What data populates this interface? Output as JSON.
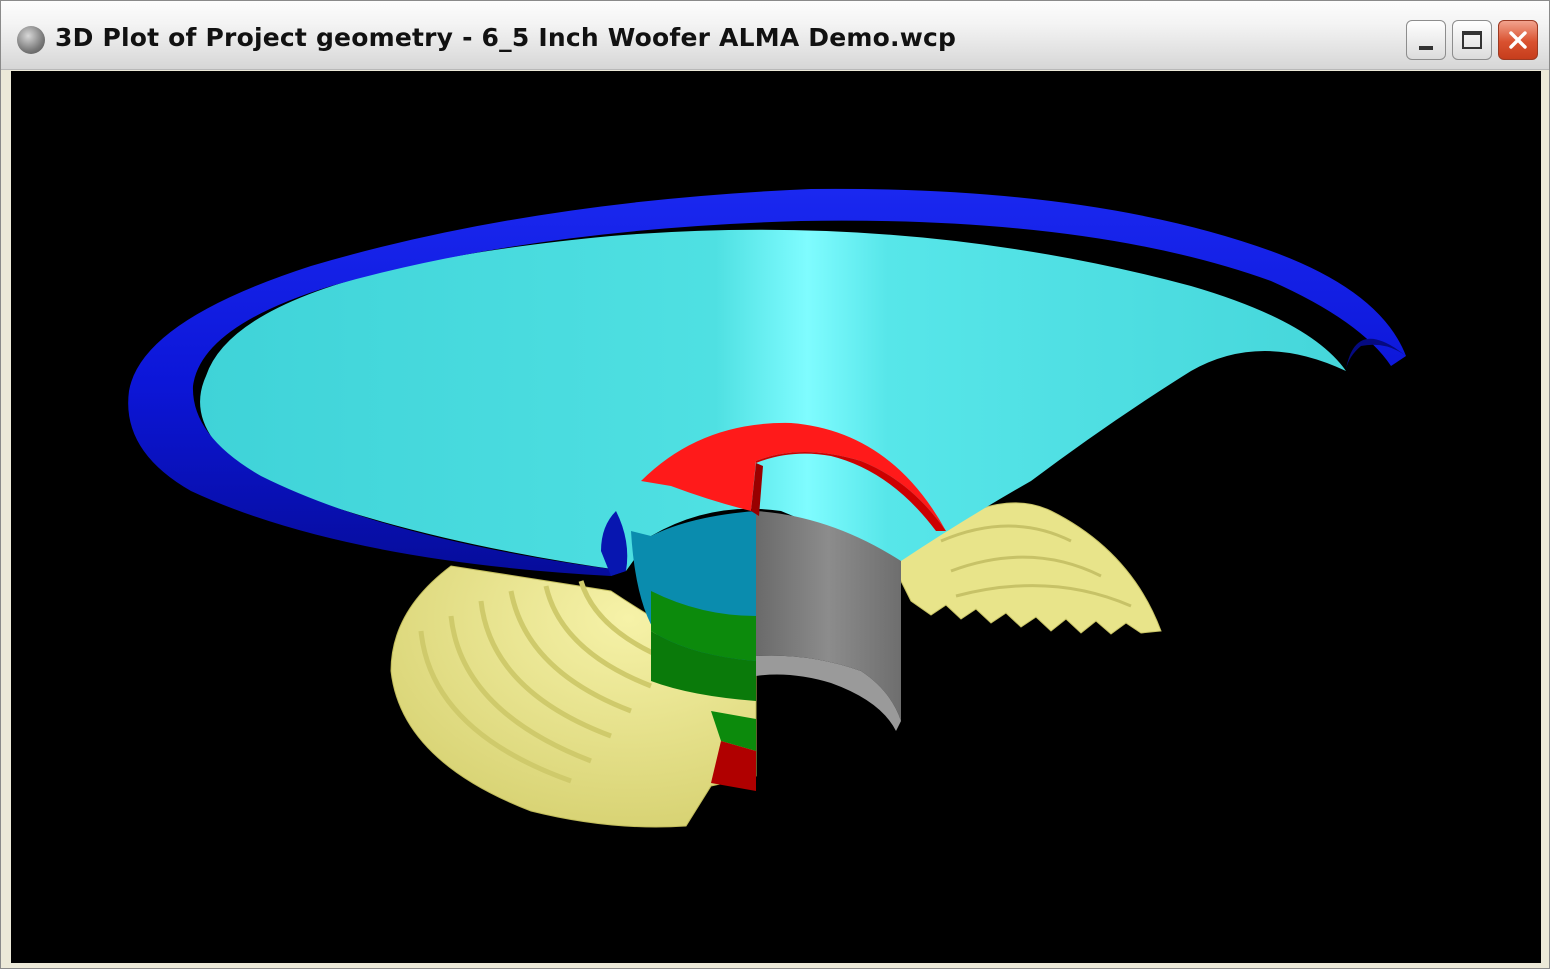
{
  "window": {
    "title": "3D Plot of Project geometry - 6_5 Inch Woofer ALMA Demo.wcp",
    "app_icon": "speaker-app-icon",
    "controls": [
      "minimize-icon",
      "maximize-icon",
      "close-icon"
    ]
  },
  "viewport": {
    "background": "#000000",
    "parts": [
      {
        "name": "surround",
        "color": "#0a14d2"
      },
      {
        "name": "cone",
        "color": "#4fe0e2"
      },
      {
        "name": "spider",
        "color": "#e8e48a"
      },
      {
        "name": "dust-cap",
        "color": "#ff1a1a"
      },
      {
        "name": "voice-coil-former",
        "color": "#808080"
      },
      {
        "name": "coil-upper",
        "color": "#0a8cae"
      },
      {
        "name": "coil-middle",
        "color": "#0c8a0c"
      },
      {
        "name": "coil-lower",
        "color": "#b00000"
      }
    ]
  }
}
